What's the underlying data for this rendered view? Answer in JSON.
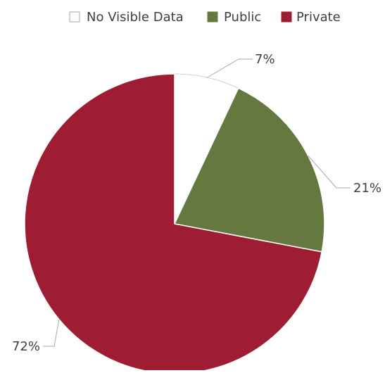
{
  "chart_data": {
    "type": "pie",
    "legend_position": "top",
    "series": [
      {
        "name": "No Visible Data",
        "value": 7,
        "label": "7%",
        "color": "#ffffff"
      },
      {
        "name": "Public",
        "value": 21,
        "label": "21%",
        "color": "#65783f"
      },
      {
        "name": "Private",
        "value": 72,
        "label": "72%",
        "color": "#9f1d32"
      }
    ],
    "slice_border_color": "#cfcfcf",
    "leader_line_color": "#a6a6a6",
    "legend_swatch_border_color": "#a6a6a6"
  }
}
